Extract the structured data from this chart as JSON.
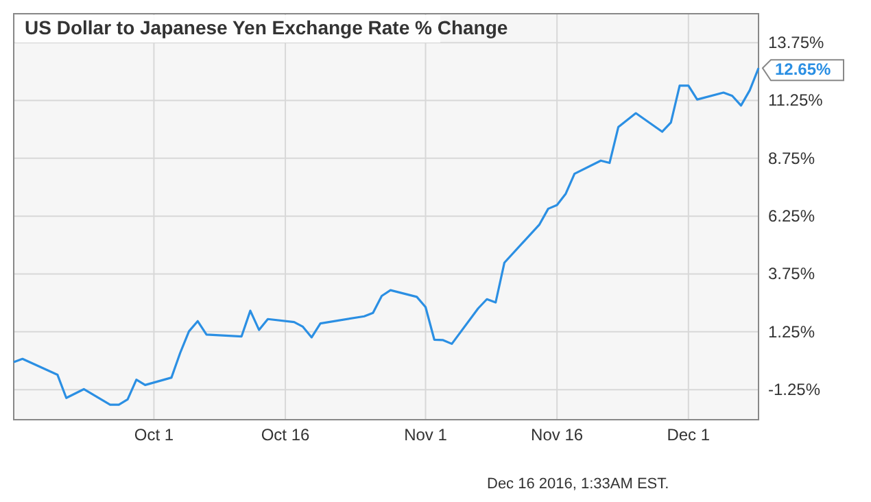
{
  "chart_data": {
    "type": "line",
    "title": "US Dollar to Japanese Yen Exchange Rate % Change",
    "x": [
      "2016-09-15",
      "2016-09-16",
      "2016-09-20",
      "2016-09-21",
      "2016-09-23",
      "2016-09-26",
      "2016-09-27",
      "2016-09-28",
      "2016-09-29",
      "2016-09-30",
      "2016-10-03",
      "2016-10-04",
      "2016-10-05",
      "2016-10-06",
      "2016-10-07",
      "2016-10-11",
      "2016-10-12",
      "2016-10-13",
      "2016-10-14",
      "2016-10-17",
      "2016-10-18",
      "2016-10-19",
      "2016-10-20",
      "2016-10-25",
      "2016-10-26",
      "2016-10-27",
      "2016-10-28",
      "2016-10-31",
      "2016-11-01",
      "2016-11-02",
      "2016-11-03",
      "2016-11-04",
      "2016-11-07",
      "2016-11-08",
      "2016-11-09",
      "2016-11-10",
      "2016-11-14",
      "2016-11-15",
      "2016-11-16",
      "2016-11-17",
      "2016-11-18",
      "2016-11-21",
      "2016-11-22",
      "2016-11-23",
      "2016-11-25",
      "2016-11-28",
      "2016-11-29",
      "2016-11-30",
      "2016-12-01",
      "2016-12-02",
      "2016-12-05",
      "2016-12-06",
      "2016-12-07",
      "2016-12-08",
      "2016-12-09"
    ],
    "series": [
      {
        "color": "#2b8fe3",
        "values": [
          -0.06,
          0.08,
          -0.61,
          -1.61,
          -1.23,
          -1.9,
          -1.9,
          -1.67,
          -0.82,
          -1.05,
          -0.73,
          0.34,
          1.27,
          1.71,
          1.13,
          1.05,
          2.16,
          1.33,
          1.8,
          1.67,
          1.47,
          1.01,
          1.61,
          1.92,
          2.07,
          2.8,
          3.05,
          2.76,
          2.32,
          0.91,
          0.89,
          0.73,
          2.26,
          2.66,
          2.52,
          4.24,
          5.89,
          6.57,
          6.73,
          7.22,
          8.08,
          8.65,
          8.55,
          10.1,
          10.7,
          9.9,
          10.3,
          11.89,
          11.89,
          11.29,
          11.59,
          11.45,
          11.03,
          11.69,
          12.65
        ]
      }
    ],
    "xlim": [
      "2016-09-15",
      "2016-12-09"
    ],
    "xticks": [
      {
        "value": "2016-10-01",
        "label": "Oct 1"
      },
      {
        "value": "2016-10-16",
        "label": "Oct 16"
      },
      {
        "value": "2016-11-01",
        "label": "Nov 1"
      },
      {
        "value": "2016-11-16",
        "label": "Nov 16"
      },
      {
        "value": "2016-12-01",
        "label": "Dec 1"
      }
    ],
    "ylim": [
      -2.55,
      15.0
    ],
    "yticks": [
      {
        "value": -1.25,
        "label": "-1.25%"
      },
      {
        "value": 1.25,
        "label": "1.25%"
      },
      {
        "value": 3.75,
        "label": "3.75%"
      },
      {
        "value": 6.25,
        "label": "6.25%"
      },
      {
        "value": 8.75,
        "label": "8.75%"
      },
      {
        "value": 11.25,
        "label": "11.25%"
      },
      {
        "value": 13.75,
        "label": "13.75%"
      }
    ],
    "grid": true,
    "marker": "none",
    "line_style": "solid",
    "annotations": [
      {
        "text": "12.65%",
        "x": "2016-12-09",
        "y": 12.65
      },
      "Dec 16 2016, 1:33AM EST."
    ]
  }
}
